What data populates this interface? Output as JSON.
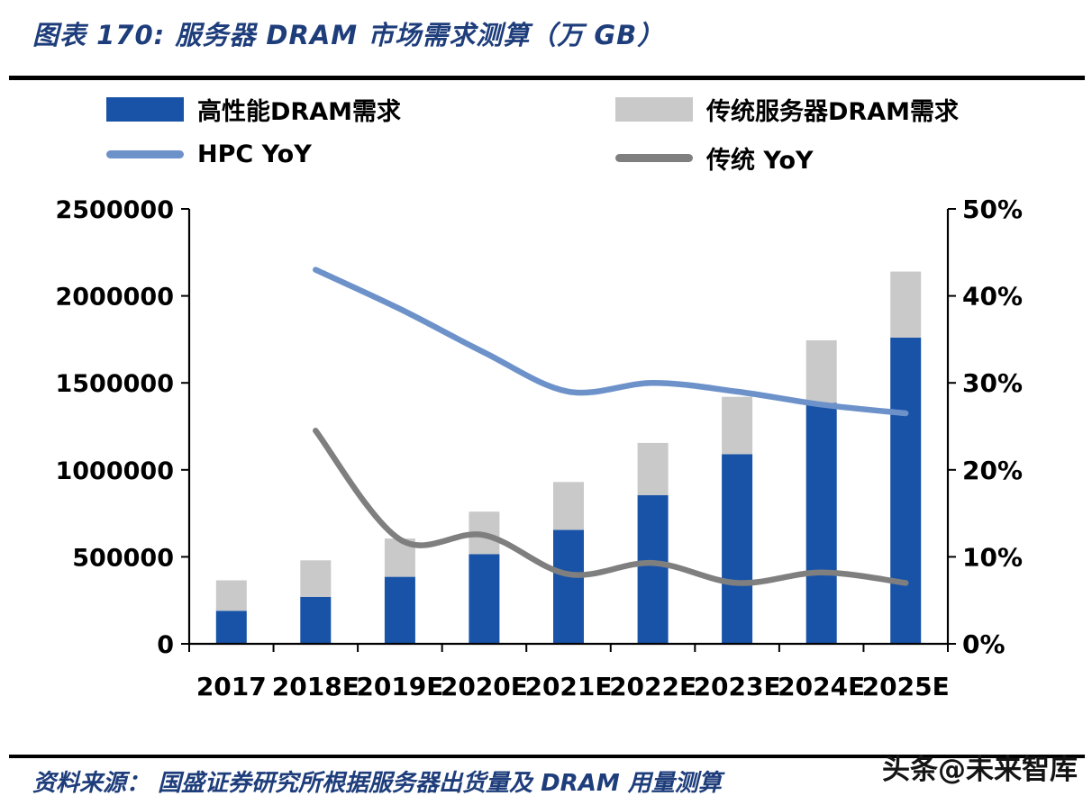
{
  "header": {
    "title": "图表 170:  服务器 DRAM 市场需求测算（万 GB）"
  },
  "legend": {
    "items": [
      {
        "label": "高性能DRAM需求",
        "type": "bar",
        "color": "#1853A8"
      },
      {
        "label": "传统服务器DRAM需求",
        "type": "bar",
        "color": "#C9C9C9"
      },
      {
        "label": "HPC YoY",
        "type": "line",
        "color": "#6D92CA"
      },
      {
        "label": "传统 YoY",
        "type": "line",
        "color": "#7F7F7F"
      }
    ]
  },
  "chart_data": {
    "type": "combo",
    "subtype": "stacked-bar + smooth-line, dual axis",
    "title": "服务器 DRAM 市场需求测算（万 GB）",
    "categories": [
      "2017",
      "2018E",
      "2019E",
      "2020E",
      "2021E",
      "2022E",
      "2023E",
      "2024E",
      "2025E"
    ],
    "bar_series": [
      {
        "name": "高性能DRAM需求",
        "axis": "left",
        "color": "#1853A8",
        "values": [
          190000,
          270000,
          385000,
          515000,
          655000,
          855000,
          1090000,
          1385000,
          1760000
        ]
      },
      {
        "name": "传统服务器DRAM需求",
        "axis": "left",
        "color": "#C9C9C9",
        "values": [
          175000,
          210000,
          220000,
          245000,
          275000,
          300000,
          330000,
          360000,
          380000
        ]
      }
    ],
    "line_series": [
      {
        "name": "HPC YoY",
        "axis": "right",
        "color": "#6D92CA",
        "values": [
          null,
          43,
          38.5,
          33.5,
          29,
          30,
          29,
          27.5,
          26.5
        ]
      },
      {
        "name": "传统 YoY",
        "axis": "right",
        "color": "#7F7F7F",
        "values": [
          null,
          24.5,
          12,
          12.5,
          8,
          9.3,
          7,
          8.2,
          7
        ]
      }
    ],
    "left_axis": {
      "min": 0,
      "max": 2500000,
      "step": 500000,
      "ticks": [
        "0",
        "500000",
        "1000000",
        "1500000",
        "2000000",
        "2500000"
      ]
    },
    "right_axis": {
      "min": 0,
      "max": 50,
      "step": 10,
      "ticks": [
        "0%",
        "10%",
        "20%",
        "30%",
        "40%",
        "50%"
      ]
    },
    "stacked": true,
    "grid": false,
    "legend_position": "top"
  },
  "footer": {
    "source": "资料来源： 国盛证券研究所根据服务器出货量及 DRAM 用量测算",
    "watermark": "头条@未来智库"
  }
}
